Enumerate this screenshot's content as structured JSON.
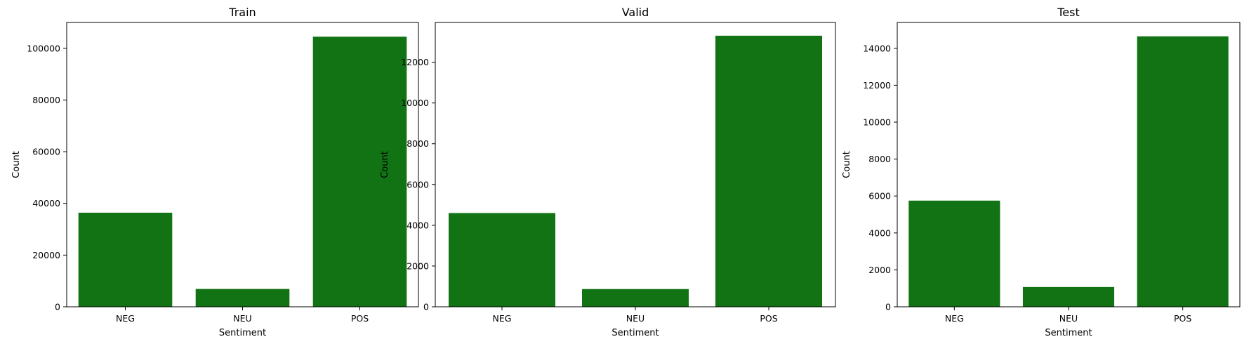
{
  "colors": {
    "bar": "#127314",
    "axis": "#000000",
    "background": "#ffffff"
  },
  "chart_data": [
    {
      "type": "bar",
      "title": "Train",
      "xlabel": "Sentiment",
      "ylabel": "Count",
      "categories": [
        "NEG",
        "NEU",
        "POS"
      ],
      "values": [
        36400,
        6900,
        104500
      ],
      "ylim": [
        0,
        110000
      ],
      "yticks": [
        0,
        20000,
        40000,
        60000,
        80000,
        100000
      ],
      "grid": false
    },
    {
      "type": "bar",
      "title": "Valid",
      "xlabel": "Sentiment",
      "ylabel": "Count",
      "categories": [
        "NEG",
        "NEU",
        "POS"
      ],
      "values": [
        4600,
        870,
        13300
      ],
      "ylim": [
        0,
        13950
      ],
      "yticks": [
        0,
        2000,
        4000,
        6000,
        8000,
        10000,
        12000
      ],
      "grid": false
    },
    {
      "type": "bar",
      "title": "Test",
      "xlabel": "Sentiment",
      "ylabel": "Count",
      "categories": [
        "NEG",
        "NEU",
        "POS"
      ],
      "values": [
        5750,
        1070,
        14650
      ],
      "ylim": [
        0,
        15400
      ],
      "yticks": [
        0,
        2000,
        4000,
        6000,
        8000,
        10000,
        12000,
        14000
      ],
      "grid": false
    }
  ]
}
